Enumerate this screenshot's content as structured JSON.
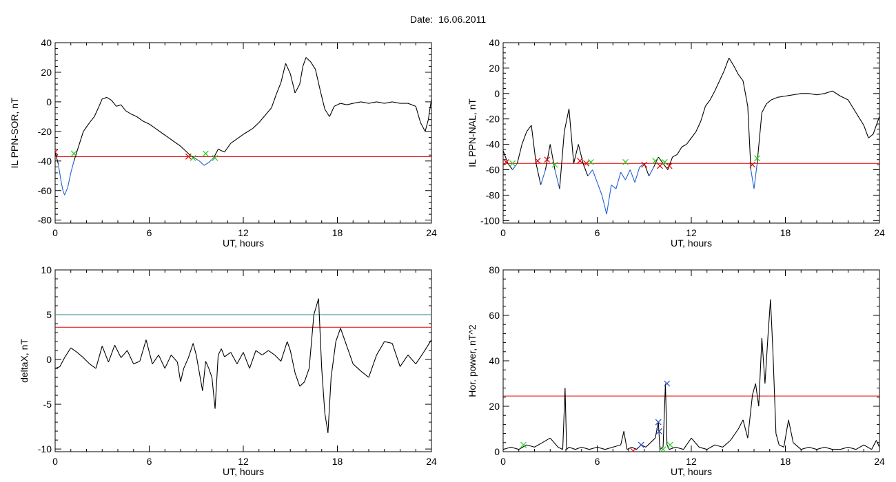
{
  "title": "Date:  16.06.2011",
  "colors": {
    "axis": "#000000",
    "trace": "#000000",
    "below": "#1f5fd6",
    "threshold": "#e00000",
    "threshold2": "#2a8a8a",
    "green_marker": "#22cc22",
    "red_marker": "#e00000",
    "blue_marker": "#2244cc"
  },
  "chart_data": [
    {
      "type": "line",
      "xlabel": "UT, hours",
      "ylabel": "IL PPN-SOR, nT",
      "xlim": [
        0,
        24
      ],
      "ylim": [
        -82,
        40
      ],
      "xticks": [
        0,
        6,
        12,
        18,
        24
      ],
      "yticks": [
        -80,
        -60,
        -40,
        -20,
        0,
        20,
        40
      ],
      "threshold": -37,
      "x": [
        0,
        0.2,
        0.4,
        0.5,
        0.6,
        0.8,
        1.0,
        1.2,
        1.5,
        1.8,
        2.2,
        2.5,
        2.8,
        3.0,
        3.3,
        3.6,
        3.9,
        4.2,
        4.5,
        4.8,
        5.2,
        5.6,
        6.0,
        6.4,
        6.8,
        7.2,
        7.6,
        8.0,
        8.3,
        8.6,
        8.9,
        9.2,
        9.5,
        9.8,
        10.1,
        10.4,
        10.8,
        11.2,
        11.6,
        12.0,
        12.3,
        12.6,
        13.0,
        13.4,
        13.8,
        14.1,
        14.4,
        14.7,
        15.0,
        15.3,
        15.6,
        15.8,
        16.0,
        16.3,
        16.6,
        16.9,
        17.2,
        17.5,
        17.8,
        18.2,
        18.6,
        19.0,
        19.5,
        20.0,
        20.5,
        21.0,
        21.5,
        22.0,
        22.5,
        23.0,
        23.3,
        23.6,
        23.8,
        24.0
      ],
      "values": [
        -34,
        -42,
        -55,
        -60,
        -63,
        -58,
        -48,
        -40,
        -30,
        -20,
        -14,
        -10,
        -3,
        2,
        3,
        1,
        -3,
        -2,
        -6,
        -8,
        -10,
        -13,
        -15,
        -18,
        -21,
        -24,
        -27,
        -30,
        -33,
        -36,
        -38,
        -40,
        -43,
        -41,
        -38,
        -32,
        -34,
        -28,
        -25,
        -22,
        -20,
        -18,
        -14,
        -9,
        -4,
        5,
        13,
        26,
        19,
        6,
        12,
        24,
        30,
        27,
        22,
        8,
        -5,
        -10,
        -3,
        -1,
        -2,
        -1,
        0,
        -1,
        0,
        -1,
        0,
        -1,
        -1,
        -3,
        -14,
        -20,
        -12,
        2
      ],
      "marker_points": [
        [
          0,
          -34,
          "red"
        ],
        [
          1.2,
          -35,
          "green"
        ],
        [
          8.5,
          -37,
          "red"
        ],
        [
          8.8,
          -38,
          "green"
        ],
        [
          9.6,
          -35,
          "green"
        ],
        [
          10.2,
          -38,
          "green"
        ]
      ]
    },
    {
      "type": "line",
      "xlabel": "UT, hours",
      "ylabel": "IL PPN-NAL, nT",
      "xlim": [
        0,
        24
      ],
      "ylim": [
        -102,
        40
      ],
      "xticks": [
        0,
        6,
        12,
        18,
        24
      ],
      "yticks": [
        -100,
        -80,
        -60,
        -40,
        -20,
        0,
        20,
        40
      ],
      "threshold": -55,
      "x": [
        0,
        0.3,
        0.6,
        0.9,
        1.2,
        1.5,
        1.8,
        2.1,
        2.4,
        2.7,
        3.0,
        3.3,
        3.6,
        3.9,
        4.2,
        4.5,
        4.8,
        5.1,
        5.4,
        5.7,
        6.0,
        6.3,
        6.6,
        6.9,
        7.2,
        7.5,
        7.8,
        8.1,
        8.4,
        8.7,
        9.0,
        9.3,
        9.6,
        9.9,
        10.2,
        10.5,
        10.8,
        11.1,
        11.4,
        11.7,
        12.0,
        12.3,
        12.6,
        12.9,
        13.2,
        13.5,
        13.8,
        14.1,
        14.4,
        14.7,
        15.0,
        15.3,
        15.6,
        15.8,
        16.0,
        16.2,
        16.5,
        16.8,
        17.1,
        17.5,
        18.0,
        18.5,
        19.0,
        19.5,
        20.0,
        20.5,
        21.0,
        21.5,
        22.0,
        22.5,
        23.0,
        23.3,
        23.6,
        24.0
      ],
      "values": [
        -45,
        -55,
        -60,
        -55,
        -40,
        -30,
        -25,
        -55,
        -72,
        -60,
        -40,
        -60,
        -75,
        -30,
        -12,
        -55,
        -40,
        -55,
        -65,
        -60,
        -70,
        -80,
        -95,
        -72,
        -75,
        -62,
        -68,
        -60,
        -70,
        -58,
        -55,
        -65,
        -58,
        -50,
        -55,
        -60,
        -50,
        -48,
        -42,
        -40,
        -35,
        -30,
        -22,
        -10,
        -5,
        2,
        10,
        18,
        28,
        22,
        15,
        10,
        -10,
        -60,
        -75,
        -55,
        -15,
        -8,
        -5,
        -3,
        -2,
        -1,
        0,
        0,
        -1,
        0,
        2,
        -2,
        -5,
        -15,
        -25,
        -35,
        -32,
        -18
      ],
      "marker_points": [
        [
          0.2,
          -54,
          "red"
        ],
        [
          0.6,
          -55,
          "green"
        ],
        [
          2.2,
          -53,
          "red"
        ],
        [
          2.8,
          -52,
          "red"
        ],
        [
          3.3,
          -56,
          "green"
        ],
        [
          4.9,
          -53,
          "red"
        ],
        [
          5.3,
          -55,
          "red"
        ],
        [
          5.6,
          -54,
          "green"
        ],
        [
          7.8,
          -54,
          "green"
        ],
        [
          9.0,
          -56,
          "red"
        ],
        [
          9.7,
          -53,
          "green"
        ],
        [
          10.0,
          -57,
          "red"
        ],
        [
          10.3,
          -54,
          "green"
        ],
        [
          10.6,
          -57,
          "red"
        ],
        [
          15.9,
          -56,
          "red"
        ],
        [
          16.2,
          -51,
          "green"
        ]
      ]
    },
    {
      "type": "line",
      "xlabel": "UT, hours",
      "ylabel": "deltaX, nT",
      "xlim": [
        0,
        24
      ],
      "ylim": [
        -10.3,
        10
      ],
      "xticks": [
        0,
        6,
        12,
        18,
        24
      ],
      "yticks": [
        -10,
        -5,
        0,
        5,
        10
      ],
      "thresholds": [
        5,
        3.6
      ],
      "x": [
        0,
        0.3,
        0.6,
        1.0,
        1.4,
        1.8,
        2.2,
        2.6,
        3.0,
        3.4,
        3.8,
        4.2,
        4.6,
        5.0,
        5.4,
        5.8,
        6.2,
        6.6,
        7.0,
        7.4,
        7.8,
        8.0,
        8.2,
        8.5,
        8.8,
        9.0,
        9.2,
        9.4,
        9.6,
        9.8,
        10.0,
        10.2,
        10.4,
        10.6,
        10.8,
        11.2,
        11.6,
        12.0,
        12.4,
        12.8,
        13.2,
        13.6,
        14.0,
        14.4,
        14.8,
        15.0,
        15.3,
        15.6,
        15.9,
        16.2,
        16.5,
        16.8,
        17.0,
        17.2,
        17.4,
        17.6,
        17.9,
        18.2,
        18.6,
        19.0,
        19.5,
        20.0,
        20.5,
        21.0,
        21.5,
        22.0,
        22.5,
        23.0,
        23.5,
        24.0
      ],
      "values": [
        -1,
        -0.8,
        0.2,
        1.3,
        0.8,
        0.2,
        -0.5,
        -1,
        1.5,
        -0.3,
        1.6,
        0.2,
        1,
        -0.5,
        -0.2,
        2.2,
        -0.5,
        0.5,
        -1,
        0.5,
        -0.3,
        -2.5,
        -1,
        0.2,
        1.8,
        0.5,
        -1.5,
        -3.5,
        -0.2,
        -1,
        -2,
        -5.5,
        0.5,
        1.2,
        0.3,
        0.8,
        -0.5,
        0.8,
        -1,
        1,
        0.5,
        1,
        0.5,
        -0.2,
        2,
        1,
        -1.5,
        -3,
        -2.5,
        -1,
        5,
        6.8,
        -1,
        -6,
        -8.2,
        -2,
        2,
        3.5,
        1.5,
        -0.5,
        -1.3,
        -2,
        0.5,
        2,
        1.8,
        -0.8,
        0.5,
        -0.5,
        0.8,
        2.2
      ],
      "marker_points": []
    },
    {
      "type": "line",
      "xlabel": "UT, hours",
      "ylabel": "Hor. power, nT^2",
      "xlim": [
        0,
        24
      ],
      "ylim": [
        0,
        80
      ],
      "xticks": [
        0,
        6,
        12,
        18,
        24
      ],
      "yticks": [
        0,
        20,
        40,
        60,
        80
      ],
      "threshold": 24.5,
      "x": [
        0,
        0.5,
        1.0,
        1.5,
        2.0,
        2.5,
        3.0,
        3.5,
        3.8,
        3.95,
        4.05,
        4.2,
        4.6,
        5.0,
        5.5,
        6.0,
        6.5,
        7.0,
        7.5,
        7.7,
        7.9,
        8.2,
        8.5,
        8.8,
        9.1,
        9.4,
        9.7,
        9.9,
        10.0,
        10.2,
        10.35,
        10.45,
        10.6,
        11.0,
        11.5,
        12.0,
        12.5,
        13.0,
        13.5,
        14.0,
        14.5,
        15.0,
        15.3,
        15.6,
        15.9,
        16.1,
        16.3,
        16.5,
        16.7,
        16.9,
        17.05,
        17.2,
        17.4,
        17.6,
        17.9,
        18.2,
        18.5,
        19.0,
        19.5,
        20.0,
        20.5,
        21.0,
        21.5,
        22.0,
        22.5,
        23.0,
        23.5,
        23.8,
        24.0
      ],
      "values": [
        1,
        2,
        1,
        3,
        2,
        4,
        6,
        2,
        1,
        28,
        1,
        2,
        1,
        2,
        1,
        2,
        1,
        2,
        3,
        9,
        1,
        2,
        1,
        3,
        2,
        4,
        6,
        13,
        1,
        2,
        30,
        3,
        1,
        2,
        1,
        6,
        2,
        1,
        3,
        2,
        5,
        10,
        14,
        6,
        25,
        30,
        20,
        50,
        30,
        52,
        67,
        45,
        8,
        3,
        2,
        14,
        4,
        1,
        2,
        1,
        2,
        1,
        1,
        2,
        1,
        3,
        1,
        5,
        2
      ],
      "marker_points": [
        [
          1.3,
          3,
          "green"
        ],
        [
          8.3,
          0.3,
          "red"
        ],
        [
          8.8,
          3,
          "blue"
        ],
        [
          9.9,
          13,
          "blue"
        ],
        [
          9.95,
          9,
          "blue"
        ],
        [
          10.2,
          1,
          "green"
        ],
        [
          10.45,
          30,
          "blue"
        ],
        [
          10.65,
          3,
          "green"
        ]
      ]
    }
  ]
}
